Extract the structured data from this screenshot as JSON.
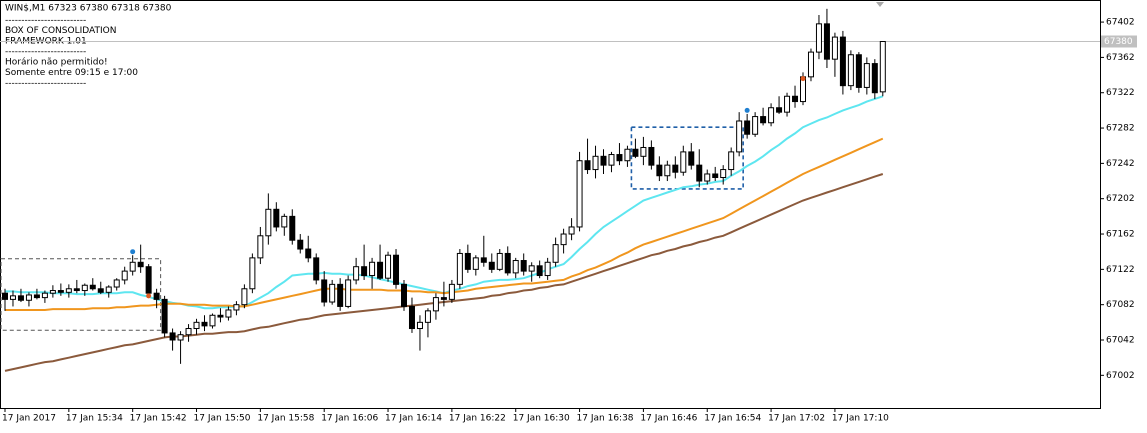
{
  "chart_data": {
    "type": "candlestick",
    "title": "WIN$,M1  67323 67380 67318 67380",
    "info_lines": [
      "-------------------------",
      "BOX OF CONSOLIDATION",
      "FRAMEWORK 1.01",
      "-------------------------",
      "Horário não permitido!",
      "Somente entre 09:15 e 17:00",
      "-------------------------"
    ],
    "categories": [
      "17 Jan 2017",
      null,
      null,
      null,
      null,
      null,
      null,
      null,
      "17 Jan 15:34",
      null,
      null,
      null,
      null,
      null,
      null,
      null,
      "17 Jan 15:42",
      null,
      null,
      null,
      null,
      null,
      null,
      null,
      "17 Jan 15:50",
      null,
      null,
      null,
      null,
      null,
      null,
      null,
      "17 Jan 15:58",
      null,
      null,
      null,
      null,
      null,
      null,
      null,
      "17 Jan 16:06",
      null,
      null,
      null,
      null,
      null,
      null,
      null,
      "17 Jan 16:14",
      null,
      null,
      null,
      null,
      null,
      null,
      null,
      "17 Jan 16:22",
      null,
      null,
      null,
      null,
      null,
      null,
      null,
      "17 Jan 16:30",
      null,
      null,
      null,
      null,
      null,
      null,
      null,
      "17 Jan 16:38",
      null,
      null,
      null,
      null,
      null,
      null,
      null,
      "17 Jan 16:46",
      null,
      null,
      null,
      null,
      null,
      null,
      null,
      "17 Jan 16:54",
      null,
      null,
      null,
      null,
      null,
      null,
      null,
      "17 Jan 17:02",
      null,
      null,
      null,
      null,
      null,
      null,
      null,
      "17 Jan 17:10",
      null,
      null,
      null,
      null,
      null,
      null
    ],
    "open": [
      67095,
      67088,
      67092,
      67087,
      67093,
      67090,
      67095,
      67098,
      67096,
      67100,
      67098,
      67104,
      67100,
      67096,
      67102,
      67110,
      67120,
      67130,
      67125,
      67095,
      67088,
      67050,
      67042,
      67048,
      67055,
      67062,
      67058,
      67070,
      67068,
      67076,
      67082,
      67100,
      67135,
      67160,
      67190,
      67170,
      67182,
      67155,
      67145,
      67135,
      67110,
      67085,
      67105,
      67080,
      67110,
      67125,
      67115,
      67130,
      67112,
      67138,
      67105,
      67080,
      67055,
      67062,
      67075,
      67090,
      67088,
      67105,
      67140,
      67122,
      67135,
      67130,
      67122,
      67140,
      67118,
      67132,
      67120,
      67126,
      67115,
      67130,
      67150,
      67162,
      67170,
      67245,
      67235,
      67250,
      67240,
      67252,
      67245,
      67258,
      67250,
      67260,
      67240,
      67228,
      67240,
      67232,
      67255,
      67240,
      67222,
      67230,
      67226,
      67235,
      67255,
      67290,
      67275,
      67295,
      67288,
      67305,
      67300,
      67318,
      67312,
      67340,
      67368,
      67400,
      67360,
      67385,
      67330,
      67365,
      67328,
      67355,
      67323
    ],
    "high": [
      67100,
      67098,
      67100,
      67096,
      67100,
      67098,
      67104,
      67106,
      67105,
      67110,
      67106,
      67112,
      67108,
      67104,
      67112,
      67125,
      67138,
      67150,
      67128,
      67100,
      67092,
      67055,
      67052,
      67060,
      67066,
      67070,
      67072,
      67078,
      67080,
      67086,
      67105,
      67140,
      67170,
      67208,
      67198,
      67185,
      67190,
      67162,
      67160,
      67140,
      67120,
      67110,
      67112,
      67115,
      67135,
      67150,
      67135,
      67150,
      67142,
      67145,
      67110,
      67090,
      67070,
      67078,
      67095,
      67108,
      67110,
      67145,
      67150,
      67138,
      67160,
      67140,
      67145,
      67148,
      67135,
      67140,
      67130,
      67132,
      67135,
      67158,
      67168,
      67180,
      67255,
      67270,
      67262,
      67258,
      67255,
      67265,
      67262,
      67270,
      67272,
      67268,
      67250,
      67245,
      67250,
      67262,
      67265,
      67258,
      67235,
      67238,
      67240,
      67260,
      67300,
      67298,
      67300,
      67305,
      67310,
      67318,
      67322,
      67330,
      67345,
      67372,
      67410,
      67417,
      67390,
      67392,
      67370,
      67368,
      67362,
      67360,
      67380
    ],
    "low": [
      67075,
      67080,
      67085,
      67080,
      67088,
      67084,
      67090,
      67092,
      67090,
      67095,
      67092,
      67098,
      67094,
      67090,
      67098,
      67105,
      67115,
      67118,
      67092,
      67078,
      67045,
      67030,
      67015,
      67040,
      67048,
      67052,
      67055,
      67062,
      67064,
      67070,
      67078,
      67095,
      67128,
      67150,
      67165,
      67160,
      67150,
      67140,
      67130,
      67105,
      67080,
      67082,
      67075,
      67078,
      67105,
      67110,
      67100,
      67110,
      67108,
      67100,
      67075,
      67050,
      67030,
      67045,
      67065,
      67080,
      67084,
      67100,
      67118,
      67115,
      67125,
      67118,
      67120,
      67115,
      67112,
      67115,
      67108,
      67112,
      67110,
      67125,
      67140,
      67155,
      67165,
      67230,
      67225,
      67230,
      67232,
      67240,
      67238,
      67248,
      67240,
      67235,
      67222,
      67222,
      67225,
      67228,
      67235,
      67215,
      67218,
      67222,
      67218,
      67228,
      67250,
      67270,
      67272,
      67285,
      67284,
      67298,
      67295,
      67305,
      67308,
      67335,
      67360,
      67350,
      67340,
      67320,
      67325,
      67322,
      67320,
      67315,
      67318
    ],
    "close": [
      67088,
      67092,
      67087,
      67093,
      67090,
      67095,
      67098,
      67096,
      67100,
      67098,
      67104,
      67100,
      67096,
      67102,
      67110,
      67120,
      67130,
      67125,
      67095,
      67088,
      67050,
      67042,
      67048,
      67055,
      67062,
      67058,
      67070,
      67068,
      67076,
      67082,
      67100,
      67135,
      67160,
      67190,
      67170,
      67182,
      67155,
      67145,
      67135,
      67110,
      67085,
      67105,
      67080,
      67110,
      67125,
      67115,
      67130,
      67112,
      67138,
      67105,
      67080,
      67055,
      67062,
      67075,
      67090,
      67088,
      67105,
      67140,
      67122,
      67135,
      67130,
      67122,
      67140,
      67118,
      67132,
      67120,
      67126,
      67115,
      67130,
      67150,
      67162,
      67170,
      67245,
      67235,
      67250,
      67240,
      67252,
      67245,
      67258,
      67250,
      67260,
      67240,
      67228,
      67240,
      67232,
      67255,
      67240,
      67222,
      67230,
      67226,
      67235,
      67255,
      67290,
      67275,
      67295,
      67288,
      67305,
      67300,
      67318,
      67312,
      67340,
      67368,
      67400,
      67360,
      67385,
      67330,
      67365,
      67328,
      67355,
      67322,
      67380
    ],
    "series": [
      {
        "color": "#5ee6f0",
        "values": [
          67097,
          67097,
          67096,
          67096,
          67096,
          67096,
          67095,
          67095,
          67095,
          67094,
          67094,
          67094,
          67095,
          67095,
          67095,
          67096,
          67096,
          67093,
          67091,
          67088,
          67086,
          67084,
          67083,
          67081,
          67080,
          67078,
          67078,
          67079,
          67079,
          67080,
          67080,
          67085,
          67090,
          67095,
          67102,
          67108,
          67115,
          67116,
          67117,
          67117,
          67118,
          67117,
          67117,
          67116,
          67116,
          67115,
          67113,
          67111,
          67109,
          67107,
          67105,
          67103,
          67101,
          67099,
          67097,
          67095,
          67098,
          67100,
          67103,
          67105,
          67108,
          67109,
          67110,
          67110,
          67111,
          67112,
          67115,
          67118,
          67122,
          67125,
          67128,
          67136,
          67145,
          67153,
          67162,
          67170,
          67176,
          67182,
          67188,
          67194,
          67200,
          67203,
          67206,
          67209,
          67212,
          67215,
          67216,
          67218,
          67219,
          67221,
          67222,
          67228,
          67233,
          67239,
          67244,
          67250,
          67257,
          67263,
          67270,
          67276,
          67283,
          67287,
          67291,
          67294,
          67298,
          67302,
          67305,
          67308,
          67312,
          67315,
          67318
        ]
      },
      {
        "color": "#f0961e",
        "values": [
          67076,
          67076,
          67076,
          67076,
          67076,
          67076,
          67077,
          67077,
          67077,
          67077,
          67077,
          67078,
          67078,
          67078,
          67079,
          67079,
          67080,
          67081,
          67081,
          67082,
          67083,
          67083,
          67083,
          67082,
          67082,
          67082,
          67081,
          67081,
          67081,
          67080,
          67080,
          67082,
          67084,
          67086,
          67088,
          67090,
          67092,
          67094,
          67096,
          67098,
          67100,
          67100,
          67100,
          67099,
          67099,
          67099,
          67099,
          67099,
          67098,
          67098,
          67098,
          67097,
          67097,
          67096,
          67096,
          67095,
          67096,
          67097,
          67098,
          67100,
          67101,
          67102,
          67103,
          67104,
          67105,
          67106,
          67106,
          67107,
          67108,
          67109,
          67110,
          67114,
          67117,
          67121,
          67124,
          67128,
          67132,
          67137,
          67141,
          67146,
          67150,
          67153,
          67156,
          67159,
          67162,
          67165,
          67168,
          67171,
          67174,
          67177,
          67180,
          67185,
          67190,
          67195,
          67200,
          67205,
          67210,
          67215,
          67220,
          67225,
          67230,
          67234,
          67238,
          67242,
          67246,
          67250,
          67254,
          67258,
          67262,
          67266,
          67270
        ]
      },
      {
        "color": "#8b5a3c",
        "values": [
          67007,
          67009,
          67011,
          67013,
          67015,
          67017,
          67018,
          67020,
          67022,
          67024,
          67026,
          67028,
          67030,
          67032,
          67034,
          67036,
          67037,
          67039,
          67041,
          67043,
          67045,
          67046,
          67046,
          67047,
          67048,
          67049,
          67049,
          67050,
          67051,
          67051,
          67052,
          67054,
          67056,
          67057,
          67059,
          67061,
          67063,
          67065,
          67066,
          67068,
          67070,
          67071,
          67072,
          67073,
          67074,
          67075,
          67076,
          67077,
          67078,
          67079,
          67080,
          67081,
          67082,
          67083,
          67084,
          67085,
          67086,
          67087,
          67088,
          67089,
          67090,
          67092,
          67093,
          67095,
          67096,
          67098,
          67099,
          67101,
          67102,
          67104,
          67105,
          67108,
          67111,
          67114,
          67117,
          67120,
          67123,
          67126,
          67129,
          67132,
          67135,
          67138,
          67140,
          67143,
          67145,
          67148,
          67150,
          67153,
          67155,
          67158,
          67160,
          67164,
          67168,
          67172,
          67176,
          67180,
          67184,
          67188,
          67192,
          67196,
          67200,
          67203,
          67206,
          67209,
          67212,
          67215,
          67218,
          67221,
          67224,
          67227,
          67230
        ]
      }
    ],
    "boxes": [
      {
        "start": 0,
        "end": 19,
        "high": 67134,
        "low": 67053,
        "color": "#555555"
      },
      {
        "start": 79,
        "end": 92,
        "high": 67283,
        "low": 67213,
        "color": "#1f5fa8"
      }
    ],
    "signals": [
      {
        "index": 16,
        "price": 67142,
        "color": "#1f7fd0"
      },
      {
        "index": 18,
        "price": 67092,
        "color": "#e05a20"
      },
      {
        "index": 93,
        "price": 67302,
        "color": "#1f7fd0"
      },
      {
        "index": 100,
        "price": 67338,
        "color": "#e05a20"
      }
    ],
    "last_price": 67380,
    "ylim": [
      66965,
      67427
    ],
    "yticks": [
      67002,
      67042,
      67082,
      67122,
      67162,
      67202,
      67242,
      67282,
      67322,
      67362,
      67402
    ]
  }
}
